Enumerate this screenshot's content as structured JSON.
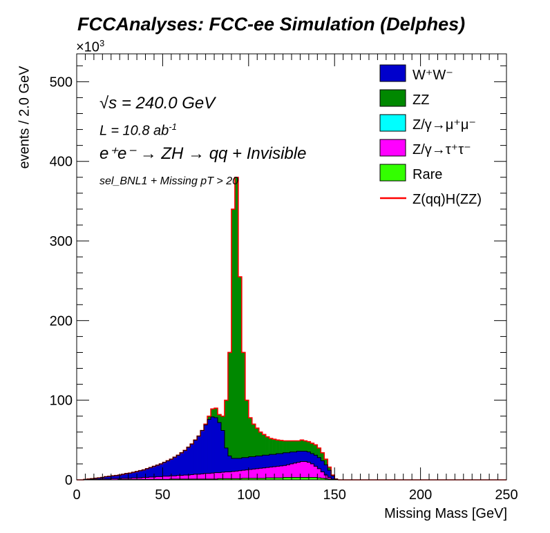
{
  "title": "FCCAnalyses: FCC-ee Simulation (Delphes)",
  "y_exponent": "×10",
  "y_exponent_power": "3",
  "annotations": {
    "sqrt_s": "√s = 240.0 GeV",
    "lumi": "L = 10.8 ab",
    "lumi_power": "-1",
    "process": "e⁺e⁻ → ZH → qq + Invisible",
    "selection": "sel_BNL1 + Missing pT > 20"
  },
  "colors": {
    "WW": "#0000cc",
    "ZZ": "#008800",
    "Zmumu": "#00ffff",
    "Ztautau": "#ff00ff",
    "Rare": "#33ff00",
    "signal": "#ff0000"
  },
  "chart_data": {
    "type": "area",
    "xlabel": "Missing Mass [GeV]",
    "ylabel": "events / 2.0 GeV",
    "xlim": [
      0,
      250
    ],
    "ylim": [
      0,
      535
    ],
    "y_unit_multiplier": 1000,
    "x_ticks": [
      "0",
      "50",
      "100",
      "150",
      "200",
      "250"
    ],
    "y_ticks": [
      "0",
      "100",
      "200",
      "300",
      "400",
      "500"
    ],
    "bin_width": 2,
    "legend_position": "top-right",
    "stacked": true,
    "series": [
      {
        "name": "Rare",
        "key": "Rare"
      },
      {
        "name": "Z/γ→τ⁺τ⁻",
        "key": "Ztautau"
      },
      {
        "name": "Z/γ→μ⁺μ⁻",
        "key": "Zmumu"
      },
      {
        "name": "ZZ",
        "key": "ZZ"
      },
      {
        "name": "W⁺W⁻",
        "key": "WW"
      },
      {
        "name": "Z(qq)H(ZZ)",
        "key": "signal"
      }
    ],
    "bins_center": [
      1,
      3,
      5,
      7,
      9,
      11,
      13,
      15,
      17,
      19,
      21,
      23,
      25,
      27,
      29,
      31,
      33,
      35,
      37,
      39,
      41,
      43,
      45,
      47,
      49,
      51,
      53,
      55,
      57,
      59,
      61,
      63,
      65,
      67,
      69,
      71,
      73,
      75,
      77,
      79,
      81,
      83,
      85,
      87,
      89,
      91,
      93,
      95,
      97,
      99,
      101,
      103,
      105,
      107,
      109,
      111,
      113,
      115,
      117,
      119,
      121,
      123,
      125,
      127,
      129,
      131,
      133,
      135,
      137,
      139,
      141,
      143,
      145,
      147,
      149,
      151
    ],
    "total": [
      0,
      0,
      0.5,
      1,
      1.5,
      2,
      2.5,
      3,
      4,
      4.5,
      5,
      5.5,
      6,
      7,
      8,
      8.5,
      9.5,
      10.5,
      11.5,
      12.5,
      14,
      15.5,
      17,
      18.5,
      20,
      22,
      24,
      26,
      28.5,
      31,
      34,
      37,
      41,
      45,
      50,
      55,
      62,
      70,
      80,
      89,
      90,
      82,
      80,
      100,
      160,
      340,
      380,
      255,
      160,
      100,
      78,
      70,
      65,
      60,
      57,
      54,
      52,
      51,
      50,
      49.5,
      49,
      49,
      49,
      49,
      49,
      50,
      49,
      48,
      46,
      44,
      40,
      34,
      26,
      16,
      6,
      1
    ],
    "WW": [
      0,
      0,
      0.5,
      1,
      1.5,
      2,
      2.5,
      3,
      4,
      4.5,
      5,
      5.5,
      6,
      7,
      8,
      8.5,
      9.5,
      10.5,
      11.5,
      12.5,
      14,
      15.5,
      17,
      18.5,
      20,
      22,
      24,
      26,
      28.5,
      31,
      34,
      37,
      41,
      45,
      50,
      55,
      62,
      69,
      76,
      79,
      78,
      72,
      62,
      40,
      30,
      27,
      27,
      27,
      28,
      28,
      29,
      29,
      30,
      30,
      31,
      31,
      32,
      32,
      33,
      33,
      34,
      34,
      35,
      35,
      36,
      36,
      36,
      35,
      33,
      31,
      28,
      24,
      19,
      12,
      5,
      1
    ],
    "Ztautau": [
      0,
      0,
      0,
      0,
      0.5,
      0.5,
      0.5,
      1,
      1,
      1,
      1.5,
      1.5,
      1.5,
      2,
      2,
      2,
      2.5,
      2.5,
      2.5,
      3,
      3,
      3.5,
      3.5,
      4,
      4,
      4.5,
      4.5,
      5,
      5,
      5.5,
      5.5,
      6,
      6,
      6.5,
      7,
      7,
      7.5,
      8,
      8,
      8.5,
      9,
      9,
      9.5,
      10,
      10,
      10.5,
      11,
      11.5,
      12,
      12.5,
      13,
      13.5,
      14,
      14.5,
      15,
      15.5,
      16,
      16.5,
      17,
      17.5,
      18,
      19,
      20,
      21,
      22,
      23,
      23,
      22,
      20,
      17,
      14,
      10,
      6,
      3,
      1,
      0
    ],
    "Rare": [
      0,
      0,
      0,
      0,
      0,
      0,
      0,
      0,
      0,
      0,
      0,
      0,
      0.5,
      0.5,
      0.5,
      0.5,
      0.5,
      0.5,
      0.5,
      0.5,
      0.5,
      0.5,
      0.5,
      0.5,
      0.5,
      0.5,
      0.5,
      1,
      1,
      1,
      1,
      1,
      1,
      1,
      1,
      1,
      1,
      1,
      1,
      1,
      1,
      1.5,
      1.5,
      1.5,
      1.5,
      1.5,
      1.5,
      1.5,
      2,
      2,
      2,
      2,
      2,
      2,
      2,
      2.5,
      2.5,
      2.5,
      2.5,
      2.5,
      3,
      3,
      3,
      3,
      3,
      3,
      3,
      3,
      3,
      3,
      2.5,
      2,
      1.5,
      1,
      0.5,
      0
    ]
  }
}
